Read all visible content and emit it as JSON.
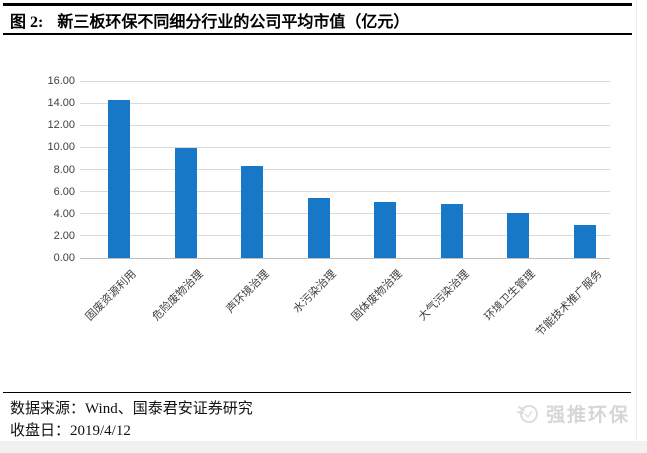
{
  "figure": {
    "label": "图 2:",
    "title": "新三板环保不同细分行业的公司平均市值（亿元）"
  },
  "chart_data": {
    "type": "bar",
    "title": "新三板环保不同细分行业的公司平均市值（亿元）",
    "categories": [
      "固废资源利用",
      "危险废物治理",
      "声环境治理",
      "水污染治理",
      "固体废物治理",
      "大气污染治理",
      "环境卫生管理",
      "节能技术推广服务"
    ],
    "values": [
      14.3,
      9.9,
      8.3,
      5.4,
      5.1,
      4.9,
      4.1,
      3.0
    ],
    "xlabel": "",
    "ylabel": "",
    "ylim": [
      0,
      16
    ],
    "ytick_step": 2,
    "yticks": [
      "16.00",
      "14.00",
      "12.00",
      "10.00",
      "8.00",
      "6.00",
      "4.00",
      "2.00",
      "0.00"
    ],
    "grid": true,
    "legend": "none",
    "bar_color": "#1878C8",
    "gridline_color": "#D9D9D9",
    "baseline_color": "#BFBFBF",
    "axis_text_color": "#404040"
  },
  "footer": {
    "source": "数据来源：Wind、国泰君安证券研究",
    "close_date": "收盘日：2019/4/12"
  },
  "watermark": {
    "text": "强推环保",
    "icon": "bird-logo"
  },
  "colors": {
    "rule": "#000000",
    "watermark": "#d6d6d6"
  }
}
